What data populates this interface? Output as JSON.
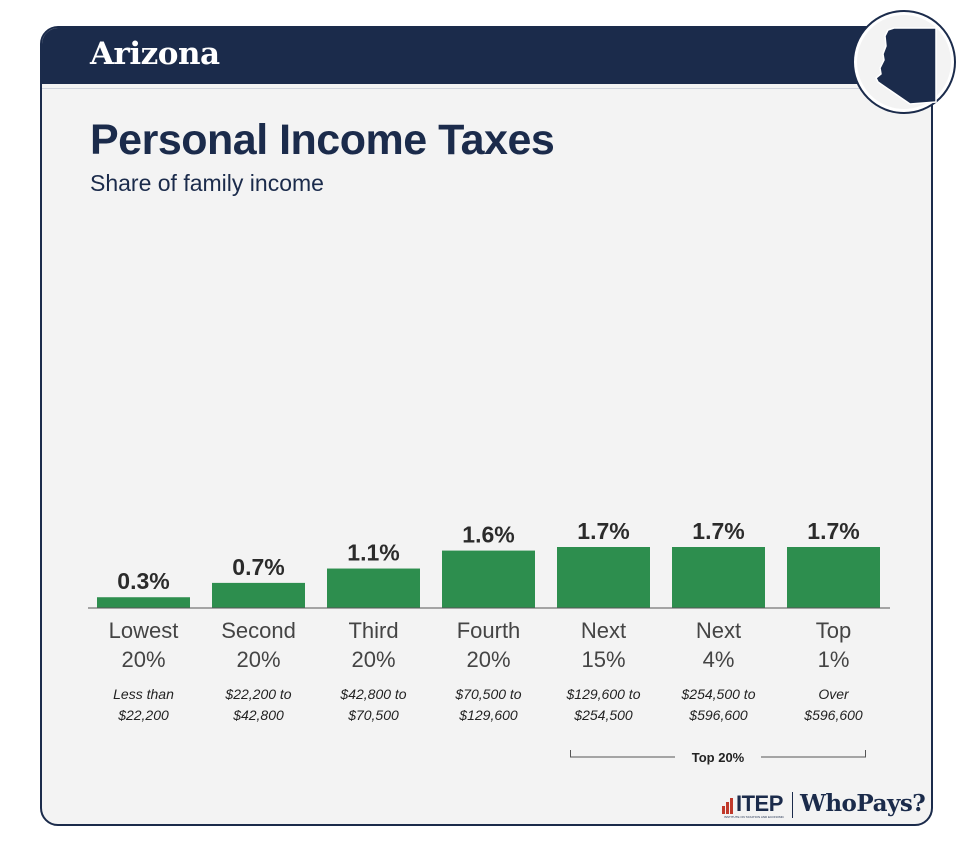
{
  "header": {
    "state": "Arizona",
    "title": "Personal Income Taxes",
    "subtitle": "Share of family income"
  },
  "chart_data": {
    "type": "bar",
    "title": "Personal Income Taxes",
    "subtitle": "Share of family income",
    "categories": [
      {
        "name": [
          "Lowest",
          "20%"
        ],
        "range": [
          "Less than",
          "$22,200"
        ]
      },
      {
        "name": [
          "Second",
          "20%"
        ],
        "range": [
          "$22,200 to",
          "$42,800"
        ]
      },
      {
        "name": [
          "Third",
          "20%"
        ],
        "range": [
          "$42,800 to",
          "$70,500"
        ]
      },
      {
        "name": [
          "Fourth",
          "20%"
        ],
        "range": [
          "$70,500 to",
          "$129,600"
        ]
      },
      {
        "name": [
          "Next",
          "15%"
        ],
        "range": [
          "$129,600 to",
          "$254,500"
        ]
      },
      {
        "name": [
          "Next",
          "4%"
        ],
        "range": [
          "$254,500 to",
          "$596,600"
        ]
      },
      {
        "name": [
          "Top",
          "1%"
        ],
        "range": [
          "Over",
          "$596,600"
        ]
      }
    ],
    "values": [
      0.3,
      0.7,
      1.1,
      1.6,
      1.7,
      1.7,
      1.7
    ],
    "value_labels": [
      "0.3%",
      "0.7%",
      "1.1%",
      "1.6%",
      "1.7%",
      "1.7%",
      "1.7%"
    ],
    "group_bracket": {
      "label": "Top 20%",
      "from_index": 4,
      "to_index": 6
    },
    "ylim": [
      0,
      1.7
    ],
    "bar_color": "#2d8e4e",
    "grid": false
  },
  "branding": {
    "org": "ITEP",
    "org_subtitle": "INSTITUTE ON TAXATION AND ECONOMIC POLICY",
    "report": "WhoPays?"
  },
  "colors": {
    "navy": "#1b2b4b",
    "bar": "#2d8e4e",
    "background": "#f3f3f3",
    "accent_red": "#c0392b"
  }
}
